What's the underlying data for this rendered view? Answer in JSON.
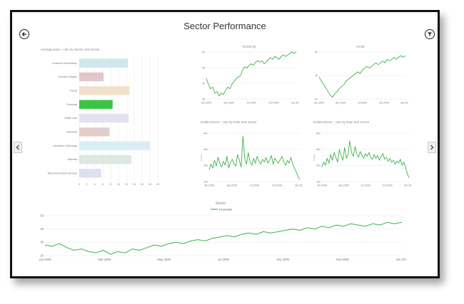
{
  "page": {
    "title": "Sector Performance"
  },
  "colors": {
    "accent": "#3cb34a",
    "grid": "#e6e6e6",
    "frame": "#111111"
  },
  "icons": {
    "back": "back-arrow-circle-icon",
    "filter": "filter-circle-icon",
    "prev": "chevron-left-icon",
    "next": "chevron-right-icon"
  },
  "chart_data": [
    {
      "id": "bar",
      "type": "bar",
      "orientation": "horizontal",
      "title": "Average pass - calc by Sector and Sector",
      "categories": [
        "Consumer Discretionary",
        "Consumer Staples",
        "Energy",
        "Financials",
        "Health Care",
        "Industrials",
        "Information Technology",
        "Materials",
        "Telecommunication Services"
      ],
      "values": [
        12.4,
        6.2,
        12.8,
        8.5,
        12.6,
        7.7,
        18.0,
        13.3,
        5.6
      ],
      "colors": [
        "#cfe8ee",
        "#e3c6c8",
        "#f1e0cc",
        "#3cc444",
        "#e2e3ee",
        "#e3cccc",
        "#d9eef2",
        "#dde8e2",
        "#dde1ee"
      ],
      "xlim": [
        0,
        20
      ],
      "xticks": [
        "0",
        "2",
        "4",
        "6",
        "8",
        "10",
        "12",
        "14",
        "16",
        "18",
        "20"
      ]
    },
    {
      "id": "nasdaq",
      "type": "line",
      "title": "NASDAQ",
      "ylim": [
        34,
        50
      ],
      "yticks": [
        "50",
        "45",
        "40",
        "35"
      ],
      "xticks": [
        "Jan 2009",
        "Apr 2009",
        "Jul 2009",
        "Oct 2009",
        "Jan 2010"
      ],
      "values": [
        41,
        39,
        37.5,
        38,
        36,
        36.5,
        35,
        36,
        35.5,
        37,
        38,
        37.5,
        39,
        40,
        41,
        41.5,
        42,
        44,
        45,
        44.5,
        45.5,
        46,
        45.5,
        46.5,
        47,
        46.5,
        47,
        46,
        46.5,
        47.5,
        48,
        47.5,
        48.5,
        48,
        47.5,
        48.5,
        49,
        48.5,
        49,
        49.5,
        50,
        49.5,
        50
      ]
    },
    {
      "id": "nyse",
      "type": "line",
      "title": "NYSE",
      "ylim": [
        39,
        52
      ],
      "yticks": [
        "50",
        "45",
        "40"
      ],
      "xticks": [
        "Jan 2009",
        "Apr 2009",
        "Jul 2009",
        "Oct 2009",
        "Jan 2010"
      ],
      "values": [
        45,
        44,
        43,
        42,
        41,
        40,
        39.5,
        40.5,
        41,
        42,
        42.5,
        43,
        44,
        44.5,
        45,
        45.5,
        46,
        46.5,
        46,
        47,
        47.5,
        48,
        47.5,
        48,
        48.5,
        49,
        48.5,
        49,
        49.5,
        49,
        50,
        49.5,
        50,
        50.5,
        50,
        50.5,
        51,
        50.5,
        51
      ]
    },
    {
      "id": "vol1",
      "type": "line",
      "title": "DollarVolume - calc by Date and Sector",
      "ylabel": "DollarV",
      "ylim": [
        0,
        50
      ],
      "yticks": [
        "4bn",
        "3bn",
        "2bn",
        "1bn"
      ],
      "xticks": [
        "Jan 2009",
        "Apr 2009",
        "Jul 2009",
        "Oct 2009",
        "Jan 2010"
      ],
      "values": [
        12,
        18,
        14,
        22,
        16,
        25,
        19,
        15,
        21,
        17,
        26,
        14,
        20,
        23,
        18,
        16,
        28,
        22,
        15,
        47,
        24,
        18,
        30,
        20,
        17,
        24,
        19,
        26,
        21,
        18,
        23,
        20,
        25,
        19,
        22,
        27,
        18,
        24,
        21,
        19,
        23,
        26,
        20,
        17,
        22,
        19,
        25,
        18,
        14,
        10,
        5,
        2
      ]
    },
    {
      "id": "vol2",
      "type": "line",
      "title": "DollarVolume - calc by Date and Sector",
      "ylabel": "DollarV",
      "ylim": [
        0,
        50
      ],
      "yticks": [
        "4bn",
        "3bn",
        "2bn",
        "1bn"
      ],
      "xticks": [
        "Jan 2009",
        "Apr 2009",
        "Jul 2009",
        "Oct 2009",
        "Jan 2010"
      ],
      "values": [
        15,
        20,
        17,
        24,
        19,
        28,
        22,
        30,
        25,
        20,
        33,
        27,
        22,
        35,
        24,
        28,
        42,
        30,
        26,
        36,
        29,
        25,
        31,
        27,
        24,
        29,
        26,
        30,
        25,
        23,
        28,
        24,
        27,
        22,
        26,
        29,
        23,
        25,
        21,
        24,
        20,
        22,
        18,
        21,
        19,
        23,
        17,
        20,
        15,
        8,
        4
      ]
    },
    {
      "id": "sector",
      "type": "line",
      "title": "Sector",
      "series": [
        {
          "name": "Financials",
          "color": "#3cb34a"
        }
      ],
      "ylim": [
        20,
        50
      ],
      "yticks": [
        "50",
        "40",
        "30",
        "20"
      ],
      "xticks": [
        "Jan 2009",
        "Mar 2009",
        "May 2009",
        "Jul 2009",
        "Sep 2009",
        "Nov 2009",
        "Jan 2010"
      ],
      "values": [
        28,
        27,
        29,
        26,
        24,
        25,
        23,
        22,
        24,
        21,
        23,
        22,
        25,
        24,
        26,
        28,
        27,
        29,
        30,
        29,
        31,
        32,
        31,
        33,
        34,
        35,
        34,
        36,
        37,
        36,
        38,
        37,
        38,
        39,
        40,
        39,
        41,
        40,
        42,
        41,
        43,
        42,
        44,
        43,
        42,
        44,
        43,
        45,
        44,
        45
      ]
    }
  ]
}
